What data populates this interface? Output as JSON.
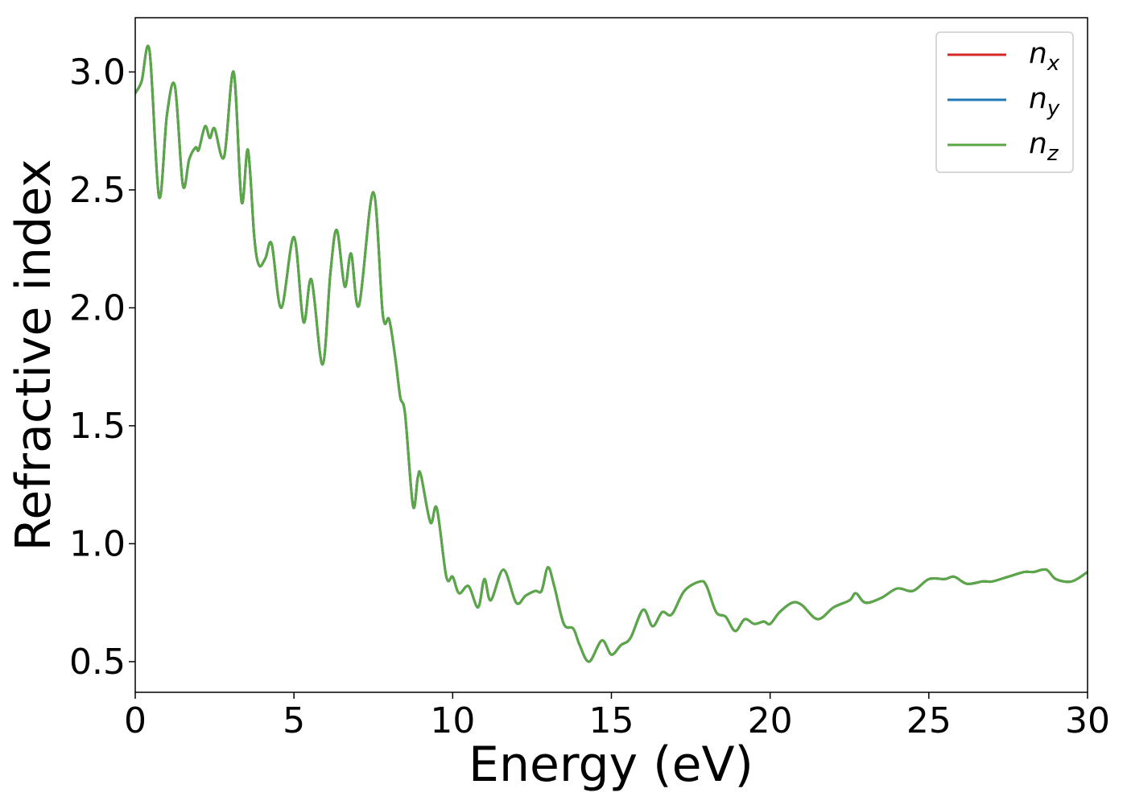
{
  "chart_data": {
    "type": "line",
    "xlabel": "Energy (eV)",
    "ylabel": "Refractive index",
    "xlim": [
      0,
      30
    ],
    "ylim": [
      0.37,
      3.23
    ],
    "xticks": [
      0,
      5,
      10,
      15,
      20,
      25,
      30
    ],
    "xtick_labels": [
      "0",
      "5",
      "10",
      "15",
      "20",
      "25",
      "30"
    ],
    "yticks": [
      0.5,
      1.0,
      1.5,
      2.0,
      2.5,
      3.0
    ],
    "ytick_labels": [
      "0.5",
      "1.0",
      "1.5",
      "2.0",
      "2.5",
      "3.0"
    ],
    "grid": false,
    "legend_position": "top-right",
    "series": [
      {
        "legend_base": "n",
        "legend_sub": "x",
        "color": "#d62728"
      },
      {
        "legend_base": "n",
        "legend_sub": "y",
        "color": "#1f77b4"
      },
      {
        "legend_base": "n",
        "legend_sub": "z",
        "color": "#5aa845"
      }
    ],
    "x": [
      0,
      0.2,
      0.45,
      0.75,
      1.0,
      1.25,
      1.5,
      1.7,
      1.9,
      2.0,
      2.2,
      2.35,
      2.5,
      2.8,
      3.1,
      3.35,
      3.55,
      3.75,
      3.9,
      4.1,
      4.3,
      4.6,
      5.0,
      5.3,
      5.55,
      5.9,
      6.15,
      6.35,
      6.6,
      6.8,
      7.05,
      7.5,
      7.8,
      8.0,
      8.2,
      8.35,
      8.5,
      8.75,
      8.9,
      9.0,
      9.3,
      9.5,
      9.8,
      10.0,
      10.2,
      10.5,
      10.8,
      11.0,
      11.2,
      11.6,
      12.0,
      12.3,
      12.6,
      12.8,
      13.0,
      13.2,
      13.5,
      13.8,
      14.0,
      14.3,
      14.7,
      15.0,
      15.3,
      15.6,
      16.0,
      16.3,
      16.6,
      16.9,
      17.3,
      17.8,
      18.0,
      18.3,
      18.6,
      18.9,
      19.2,
      19.5,
      19.8,
      20.0,
      20.3,
      20.7,
      21.0,
      21.5,
      22.0,
      22.5,
      22.7,
      23.0,
      23.5,
      24.0,
      24.5,
      25.0,
      25.5,
      25.8,
      26.2,
      26.7,
      27.0,
      27.5,
      28.0,
      28.3,
      28.7,
      29.0,
      29.5,
      30.0
    ],
    "y": [
      2.91,
      2.96,
      3.09,
      2.47,
      2.82,
      2.94,
      2.52,
      2.63,
      2.68,
      2.67,
      2.77,
      2.72,
      2.76,
      2.64,
      3.0,
      2.45,
      2.67,
      2.3,
      2.18,
      2.21,
      2.27,
      2.0,
      2.3,
      1.94,
      2.12,
      1.76,
      2.15,
      2.33,
      2.09,
      2.23,
      2.01,
      2.49,
      1.97,
      1.95,
      1.78,
      1.62,
      1.55,
      1.16,
      1.28,
      1.29,
      1.09,
      1.15,
      0.86,
      0.86,
      0.79,
      0.82,
      0.73,
      0.85,
      0.76,
      0.89,
      0.75,
      0.78,
      0.8,
      0.8,
      0.9,
      0.82,
      0.66,
      0.64,
      0.57,
      0.5,
      0.59,
      0.53,
      0.57,
      0.6,
      0.72,
      0.65,
      0.71,
      0.7,
      0.8,
      0.84,
      0.82,
      0.71,
      0.69,
      0.63,
      0.68,
      0.66,
      0.67,
      0.66,
      0.71,
      0.75,
      0.74,
      0.68,
      0.73,
      0.76,
      0.79,
      0.75,
      0.77,
      0.81,
      0.8,
      0.85,
      0.85,
      0.86,
      0.83,
      0.84,
      0.84,
      0.86,
      0.88,
      0.88,
      0.89,
      0.85,
      0.84,
      0.88
    ]
  }
}
